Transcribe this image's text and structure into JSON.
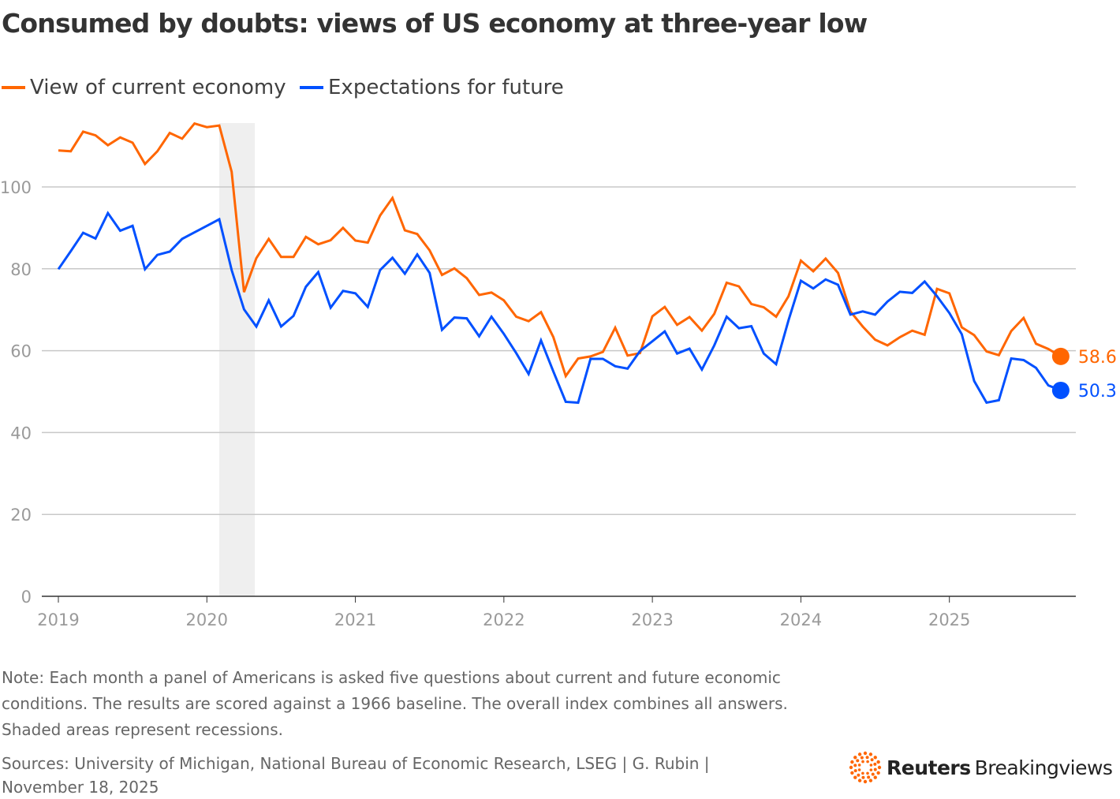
{
  "chart_data": {
    "type": "line",
    "title": "Consumed by doubts: views of US economy at three-year low",
    "x_start": "2019-01",
    "x_frequency": "monthly",
    "x_ticks": [
      "2019",
      "2020",
      "2021",
      "2022",
      "2023",
      "2024",
      "2025"
    ],
    "y_ticks": [
      "0",
      "20",
      "40",
      "60",
      "80",
      "100"
    ],
    "ylim": [
      0,
      115
    ],
    "grid": true,
    "legend_position": "top-left",
    "recession": {
      "start": "2020-02",
      "end": "2020-04"
    },
    "series": [
      {
        "name": "View of current economy",
        "color": "#ff6600",
        "end_label": "58.6",
        "values": [
          108.9,
          108.7,
          113.5,
          112.6,
          110.2,
          112.1,
          110.8,
          105.6,
          108.7,
          113.2,
          111.8,
          115.5,
          114.6,
          115.0,
          103.7,
          74.3,
          82.6,
          87.3,
          82.9,
          82.9,
          87.8,
          86.0,
          87.0,
          90.0,
          86.9,
          86.4,
          93.0,
          97.3,
          89.4,
          88.5,
          84.5,
          78.5,
          80.1,
          77.7,
          73.6,
          74.2,
          72.3,
          68.3,
          67.2,
          69.4,
          63.3,
          53.8,
          58.1,
          58.6,
          59.7,
          65.6,
          58.8,
          59.4,
          68.4,
          70.7,
          66.3,
          68.2,
          64.9,
          69.0,
          76.6,
          75.7,
          71.4,
          70.6,
          68.3,
          73.3,
          82.0,
          79.4,
          82.5,
          79.0,
          69.6,
          65.9,
          62.7,
          61.3,
          63.3,
          64.9,
          63.9,
          75.1,
          74.0,
          65.7,
          63.8,
          59.8,
          58.9,
          64.8,
          68.0,
          61.7,
          60.4,
          58.6
        ]
      },
      {
        "name": "Expectations for future",
        "color": "#0050ff",
        "end_label": "50.3",
        "values": [
          79.9,
          84.3,
          88.8,
          87.4,
          93.6,
          89.3,
          90.5,
          79.9,
          83.4,
          84.2,
          87.3,
          88.9,
          90.5,
          92.1,
          79.7,
          70.1,
          65.9,
          72.3,
          65.9,
          68.5,
          75.6,
          79.2,
          70.5,
          74.6,
          74.0,
          70.7,
          79.7,
          82.7,
          78.8,
          83.5,
          79.0,
          65.1,
          68.1,
          67.9,
          63.5,
          68.3,
          64.1,
          59.4,
          54.3,
          62.5,
          54.9,
          47.5,
          47.3,
          58.0,
          58.0,
          56.2,
          55.6,
          59.9,
          62.3,
          64.7,
          59.3,
          60.5,
          55.4,
          61.3,
          68.3,
          65.5,
          66.0,
          59.3,
          56.7,
          67.4,
          77.1,
          75.2,
          77.4,
          76.1,
          68.8,
          69.6,
          68.8,
          72.0,
          74.4,
          74.1,
          76.9,
          73.3,
          69.2,
          64.0,
          52.6,
          47.3,
          47.9,
          58.1,
          57.7,
          55.8,
          51.5,
          50.3
        ]
      }
    ]
  },
  "note": "Note: Each month a panel of Americans is asked five questions about current and future economic conditions. The results are scored against a 1966 baseline. The overall index combines all answers. Shaded areas represent recessions.",
  "source": "Sources: University of Michigan, National Bureau of Economic Research, LSEG | G. Rubin | November 18, 2025",
  "logo": {
    "brand": "Reuters",
    "product": "Breakingviews"
  }
}
